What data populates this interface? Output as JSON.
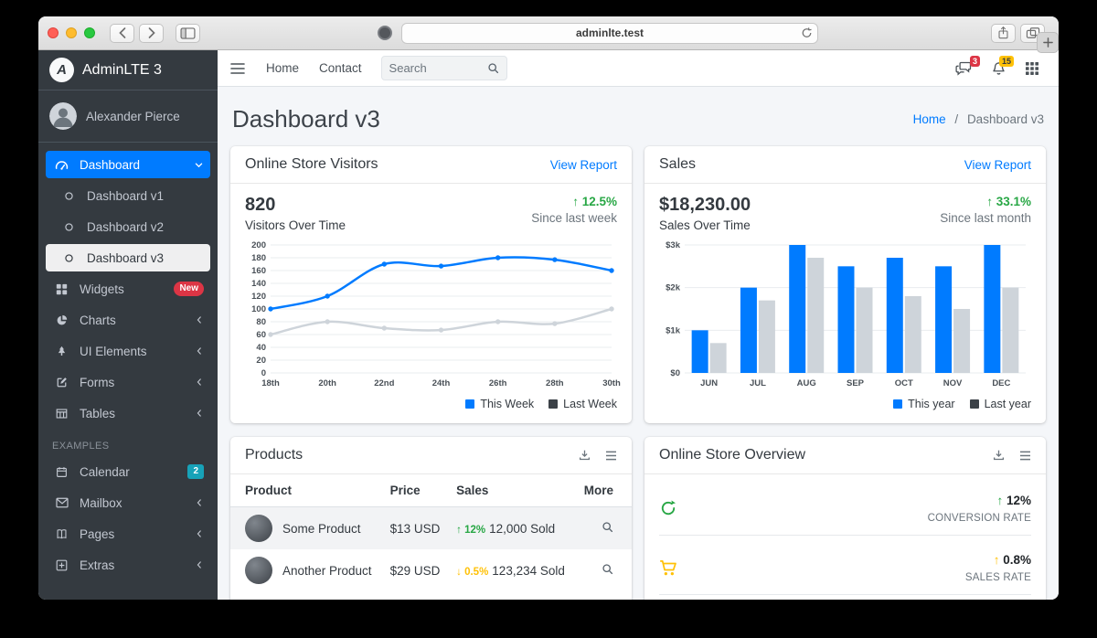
{
  "browser": {
    "url": "adminlte.test"
  },
  "colors": {
    "primary": "#007bff",
    "success": "#28a745",
    "warning": "#ffc107",
    "danger": "#dc3545",
    "info": "#17a2b8",
    "sidebar_bg": "#343a40"
  },
  "sidebar": {
    "brand": "AdminLTE 3",
    "user": "Alexander Pierce",
    "section_header": "EXAMPLES",
    "items": [
      {
        "label": "Dashboard"
      },
      {
        "label": "Dashboard v1"
      },
      {
        "label": "Dashboard v2"
      },
      {
        "label": "Dashboard v3"
      },
      {
        "label": "Widgets",
        "badge": "New"
      },
      {
        "label": "Charts"
      },
      {
        "label": "UI Elements"
      },
      {
        "label": "Forms"
      },
      {
        "label": "Tables"
      },
      {
        "label": "Calendar",
        "badge": "2"
      },
      {
        "label": "Mailbox"
      },
      {
        "label": "Pages"
      },
      {
        "label": "Extras"
      }
    ]
  },
  "navbar": {
    "links": [
      {
        "label": "Home"
      },
      {
        "label": "Contact"
      }
    ],
    "search_placeholder": "Search",
    "messages_badge": "3",
    "notifications_badge": "15"
  },
  "page": {
    "title": "Dashboard v3",
    "breadcrumb_home": "Home",
    "breadcrumb_sep": "/",
    "breadcrumb_current": "Dashboard v3"
  },
  "cards": {
    "visitors": {
      "title": "Online Store Visitors",
      "link": "View Report",
      "value": "820",
      "value_label": "Visitors Over Time",
      "delta_arrow": "↑",
      "delta": "12.5%",
      "note": "Since last week"
    },
    "sales": {
      "title": "Sales",
      "link": "View Report",
      "value": "$18,230.00",
      "value_label": "Sales Over Time",
      "delta_arrow": "↑",
      "delta": "33.1%",
      "note": "Since last month"
    },
    "products": {
      "title": "Products",
      "columns": [
        "Product",
        "Price",
        "Sales",
        "More"
      ],
      "rows": [
        {
          "name": "Some Product",
          "price": "$13 USD",
          "delta_arrow": "↑",
          "delta": "12%",
          "sold": "12,000 Sold"
        },
        {
          "name": "Another Product",
          "price": "$29 USD",
          "delta_arrow": "↓",
          "delta": "0.5%",
          "sold": "123,234 Sold"
        }
      ]
    },
    "overview": {
      "title": "Online Store Overview",
      "rows": [
        {
          "delta_arrow": "↑",
          "delta": "12%",
          "label": "CONVERSION RATE"
        },
        {
          "delta_arrow": "↑",
          "delta": "0.8%",
          "label": "SALES RATE"
        }
      ]
    }
  },
  "chart_data": [
    {
      "type": "line",
      "title": "Visitors Over Time",
      "x": [
        "18th",
        "20th",
        "22nd",
        "24th",
        "26th",
        "28th",
        "30th"
      ],
      "series": [
        {
          "name": "This Week",
          "color": "#007bff",
          "values": [
            100,
            120,
            170,
            167,
            180,
            177,
            160
          ]
        },
        {
          "name": "Last Week",
          "color": "#ced4da",
          "values": [
            60,
            80,
            70,
            67,
            80,
            77,
            100
          ]
        }
      ],
      "ylim": [
        0,
        200
      ],
      "ytick_step": 20,
      "grid": true,
      "legend_position": "bottom-right",
      "legend": [
        {
          "label": "This Week",
          "swatch": "#007bff"
        },
        {
          "label": "Last Week",
          "swatch": "#3b4147"
        }
      ]
    },
    {
      "type": "bar",
      "title": "Sales Over Time",
      "categories": [
        "JUN",
        "JUL",
        "AUG",
        "SEP",
        "OCT",
        "NOV",
        "DEC"
      ],
      "series": [
        {
          "name": "This year",
          "color": "#007bff",
          "values": [
            1000,
            2000,
            3000,
            2500,
            2700,
            2500,
            3000
          ]
        },
        {
          "name": "Last year",
          "color": "#ced4da",
          "values": [
            700,
            1700,
            2700,
            2000,
            1800,
            1500,
            2000
          ]
        }
      ],
      "ylim": [
        0,
        3000
      ],
      "ytick_labels": [
        "$0",
        "$1k",
        "$2k",
        "$3k"
      ],
      "grid": true,
      "legend_position": "bottom-right",
      "legend": [
        {
          "label": "This year",
          "swatch": "#007bff"
        },
        {
          "label": "Last year",
          "swatch": "#3b4147"
        }
      ]
    }
  ]
}
